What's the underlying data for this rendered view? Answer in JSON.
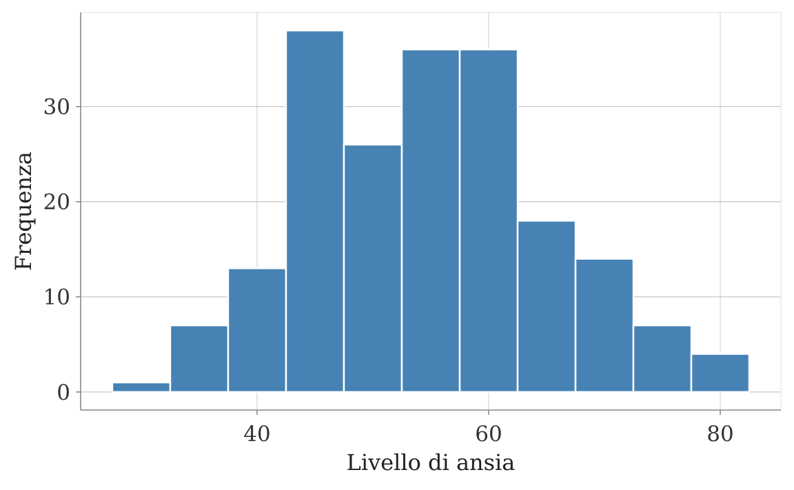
{
  "chart_data": {
    "type": "bar",
    "title": "",
    "xlabel": "Livello di ansia",
    "ylabel": "Frequenza",
    "bin_width": 5,
    "bins": [
      {
        "start": 27.5,
        "end": 32.5,
        "count": 1
      },
      {
        "start": 32.5,
        "end": 37.5,
        "count": 7
      },
      {
        "start": 37.5,
        "end": 42.5,
        "count": 13
      },
      {
        "start": 42.5,
        "end": 47.5,
        "count": 38
      },
      {
        "start": 47.5,
        "end": 52.5,
        "count": 26
      },
      {
        "start": 52.5,
        "end": 57.5,
        "count": 36
      },
      {
        "start": 57.5,
        "end": 62.5,
        "count": 36
      },
      {
        "start": 62.5,
        "end": 67.5,
        "count": 18
      },
      {
        "start": 67.5,
        "end": 72.5,
        "count": 14
      },
      {
        "start": 72.5,
        "end": 77.5,
        "count": 7
      },
      {
        "start": 77.5,
        "end": 82.5,
        "count": 4
      }
    ],
    "xlim": [
      12.25,
      72.75
    ],
    "ylim": [
      -1.9,
      39.9
    ],
    "x_ticks": [
      40,
      60,
      80
    ],
    "x_tick_labels": [
      "40",
      "60",
      "80"
    ],
    "y_ticks": [
      0,
      10,
      20,
      30
    ],
    "y_tick_labels": [
      "0",
      "10",
      "20",
      "30"
    ],
    "grid": true,
    "bar_color": "#4682b4",
    "bar_edge_color": "#ffffff",
    "grid_color": "#d9d9d9",
    "axis_color": "#888888"
  }
}
